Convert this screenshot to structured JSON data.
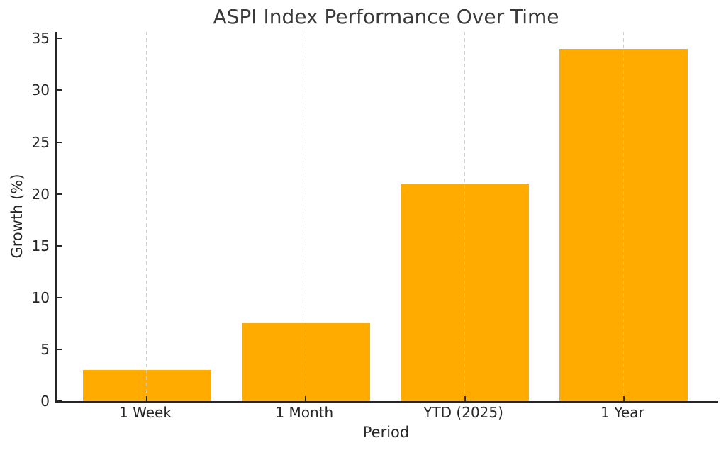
{
  "figure": {
    "background": "#ffffff"
  },
  "chart_data": {
    "type": "bar",
    "title": "ASPI Index Performance Over Time",
    "xlabel": "Period",
    "ylabel": "Growth (%)",
    "categories": [
      "1 Week",
      "1 Month",
      "YTD (2025)",
      "1 Year"
    ],
    "values": [
      3,
      7.5,
      21,
      34
    ],
    "yticks": [
      0,
      5,
      10,
      15,
      20,
      25,
      30,
      35
    ],
    "ylim": [
      0,
      35.64
    ],
    "bar_color": "#FFAB00",
    "grid": "vertical-dashed-at-category-centers",
    "grid_color": "#c8c8c8",
    "axis_color": "#262626",
    "title_color": "#3a3a3a",
    "tick_color": "#262626",
    "legend": "none"
  }
}
